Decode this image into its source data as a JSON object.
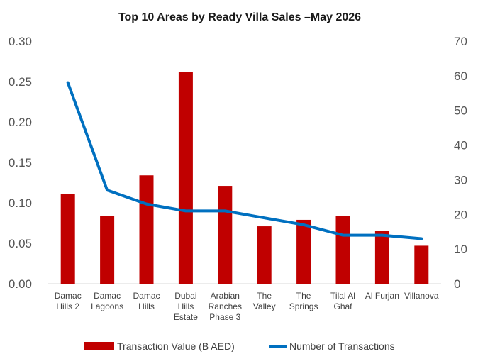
{
  "chart_data": {
    "type": "bar",
    "title": "Top 10 Areas by  Ready Villa Sales –May 2026",
    "categories": [
      [
        "Damac",
        "Hills 2"
      ],
      [
        "Damac",
        "Lagoons"
      ],
      [
        "Damac",
        "Hills"
      ],
      [
        "Dubai",
        "Hills",
        "Estate"
      ],
      [
        "Arabian",
        "Ranches",
        "Phase 3"
      ],
      [
        "The",
        "Valley"
      ],
      [
        "The",
        "Springs"
      ],
      [
        "Tilal Al",
        "Ghaf"
      ],
      [
        "Al Furjan"
      ],
      [
        "Villanova"
      ]
    ],
    "series": [
      {
        "name": "Transaction Value (B AED)",
        "type": "bar",
        "axis": "left",
        "color": "#c00000",
        "values": [
          0.111,
          0.084,
          0.134,
          0.262,
          0.121,
          0.071,
          0.079,
          0.084,
          0.065,
          0.047
        ]
      },
      {
        "name": "Number of Transactions",
        "type": "line",
        "axis": "right",
        "color": "#0070c0",
        "values": [
          58,
          27,
          23,
          21,
          21,
          19,
          17,
          14,
          14,
          13
        ]
      }
    ],
    "y_left": {
      "min": 0,
      "max": 0.3,
      "ticks": [
        "0.00",
        "0.05",
        "0.10",
        "0.15",
        "0.20",
        "0.25",
        "0.30"
      ]
    },
    "y_right": {
      "min": 0,
      "max": 70,
      "ticks": [
        "0",
        "10",
        "20",
        "30",
        "40",
        "50",
        "60",
        "70"
      ]
    },
    "grid": false,
    "legend_position": "bottom"
  }
}
